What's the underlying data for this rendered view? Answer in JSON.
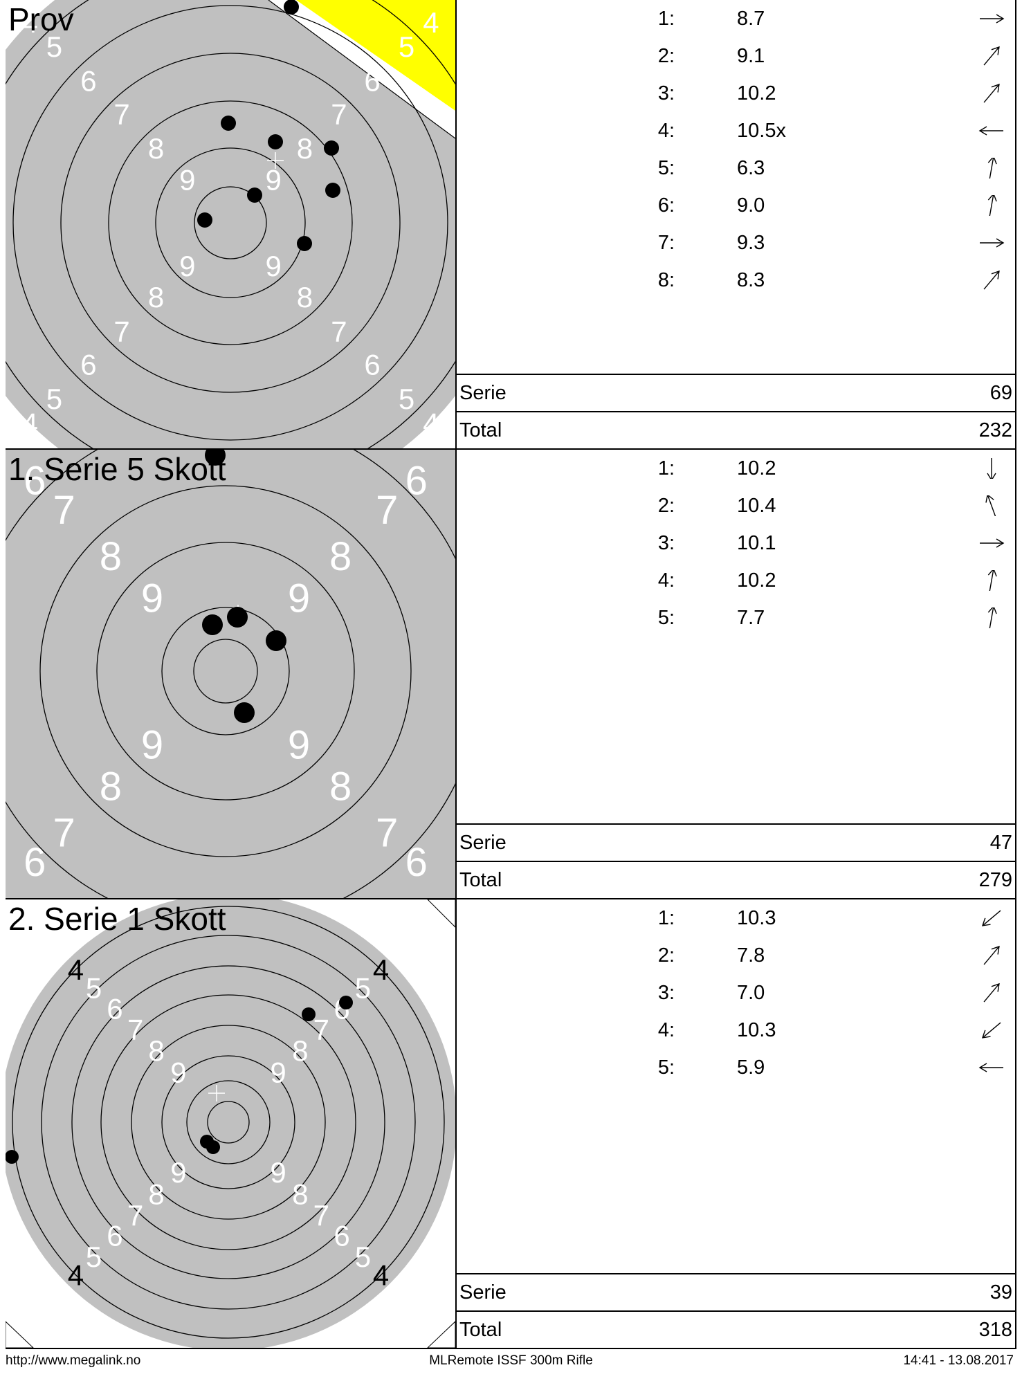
{
  "series": [
    {
      "title": "Prov",
      "shots": [
        {
          "num": "1:",
          "score": "8.7",
          "dir": "right"
        },
        {
          "num": "2:",
          "score": "9.1",
          "dir": "up-right"
        },
        {
          "num": "3:",
          "score": "10.2",
          "dir": "up-right"
        },
        {
          "num": "4:",
          "score": "10.5x",
          "dir": "left"
        },
        {
          "num": "5:",
          "score": "6.3",
          "dir": "up"
        },
        {
          "num": "6:",
          "score": "9.0",
          "dir": "up"
        },
        {
          "num": "7:",
          "score": "9.3",
          "dir": "right"
        },
        {
          "num": "8:",
          "score": "8.3",
          "dir": "up-right"
        }
      ],
      "serie_label": "Serie",
      "serie_value": "69",
      "total_label": "Total",
      "total_value": "232",
      "ring_labels": [
        "4",
        "5",
        "6",
        "7",
        "8",
        "9"
      ]
    },
    {
      "title": "1. Serie 5 Skott",
      "shots": [
        {
          "num": "1:",
          "score": "10.2",
          "dir": "down"
        },
        {
          "num": "2:",
          "score": "10.4",
          "dir": "up-left"
        },
        {
          "num": "3:",
          "score": "10.1",
          "dir": "right"
        },
        {
          "num": "4:",
          "score": "10.2",
          "dir": "up"
        },
        {
          "num": "5:",
          "score": "7.7",
          "dir": "up"
        }
      ],
      "serie_label": "Serie",
      "serie_value": "47",
      "total_label": "Total",
      "total_value": "279",
      "ring_labels": [
        "6",
        "7",
        "8",
        "9"
      ]
    },
    {
      "title": "2. Serie 1 Skott",
      "shots": [
        {
          "num": "1:",
          "score": "10.3",
          "dir": "down-left"
        },
        {
          "num": "2:",
          "score": "7.8",
          "dir": "up-right"
        },
        {
          "num": "3:",
          "score": "7.0",
          "dir": "up-right"
        },
        {
          "num": "4:",
          "score": "10.3",
          "dir": "down-left"
        },
        {
          "num": "5:",
          "score": "5.9",
          "dir": "left"
        }
      ],
      "serie_label": "Serie",
      "serie_value": "39",
      "total_label": "Total",
      "total_value": "318",
      "ring_labels": [
        "4",
        "5",
        "6",
        "7",
        "8",
        "9"
      ]
    }
  ],
  "footer": {
    "left": "http://www.megalink.no",
    "center": "MLRemote ISSF 300m Rifle",
    "right": "14:41 - 13.08.2017"
  },
  "colors": {
    "target_gray": "#c0c0c0",
    "ring_line": "#000000",
    "ring_label": "#ffffff",
    "shot_hole": "#000000",
    "warning_yellow": "#ffff00"
  }
}
